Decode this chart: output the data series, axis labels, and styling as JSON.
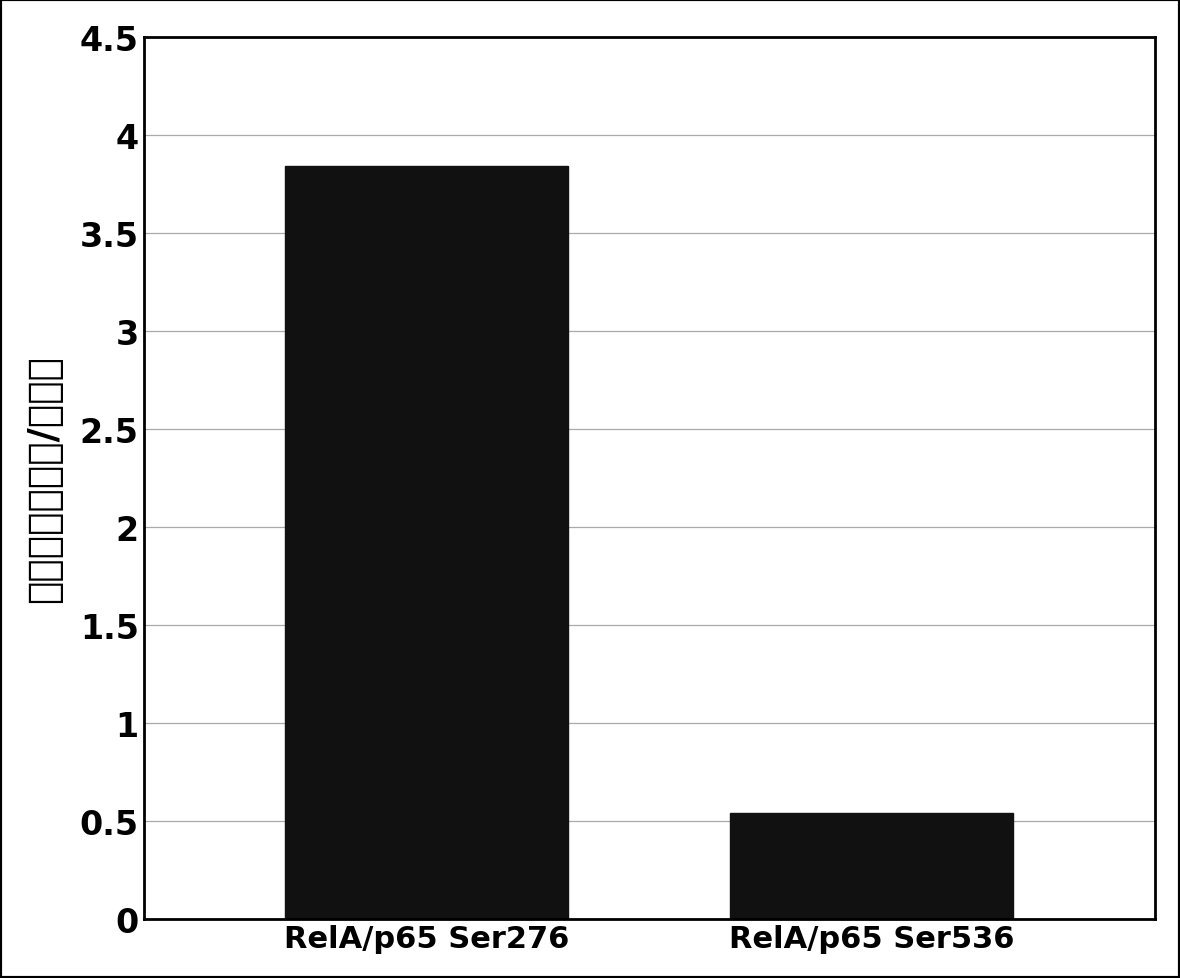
{
  "categories": [
    "RelA/p65 Ser276",
    "RelA/p65 Ser536"
  ],
  "values": [
    3.84,
    0.54
  ],
  "bar_colors": [
    "#111111",
    "#111111"
  ],
  "bar_width": 0.28,
  "ylabel": "相对水平（肿瘤/正常）",
  "ylim": [
    0,
    4.5
  ],
  "yticks": [
    0,
    0.5,
    1,
    1.5,
    2,
    2.5,
    3,
    3.5,
    4,
    4.5
  ],
  "ytick_labels": [
    "0",
    "0.5",
    "1",
    "1.5",
    "2",
    "2.5",
    "3",
    "3.5",
    "4",
    "4.5"
  ],
  "background_color": "#ffffff",
  "grid_color": "#aaaaaa",
  "tick_fontsize": 24,
  "ylabel_fontsize": 28,
  "xlabel_fontsize": 22,
  "border_color": "#000000",
  "x_positions": [
    0.28,
    0.72
  ]
}
